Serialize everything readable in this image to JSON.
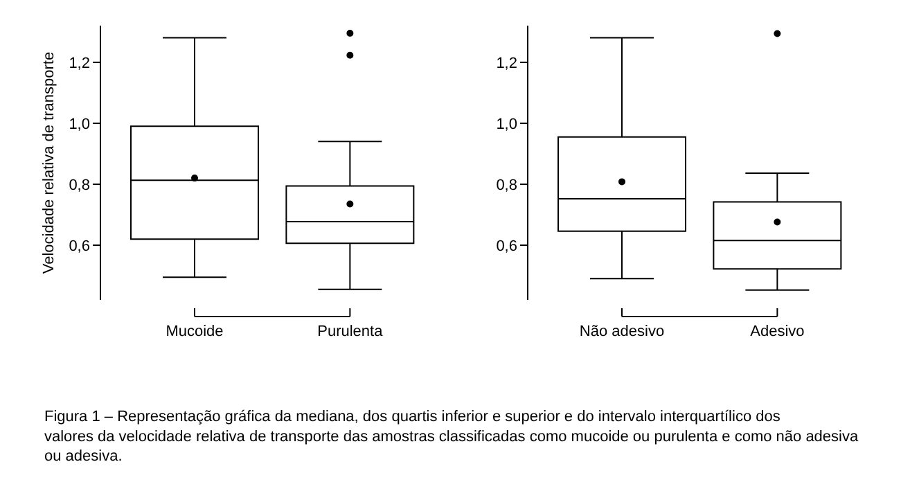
{
  "chart_data": [
    {
      "type": "box",
      "ylabel": "Velocidade relativa de transporte",
      "categories": [
        "Mucoide",
        "Purulenta"
      ],
      "boxes": [
        {
          "low": 0.495,
          "q1": 0.62,
          "median": 0.813,
          "q3": 0.99,
          "high": 1.28,
          "mean": 0.82
        },
        {
          "low": 0.455,
          "q1": 0.606,
          "median": 0.677,
          "q3": 0.794,
          "high": 0.94,
          "mean": 0.735,
          "outliers": [
            1.223,
            1.295
          ]
        }
      ],
      "color": "#000000",
      "ylim": [
        0.42,
        1.32
      ],
      "yticks": [
        {
          "value": 0.6,
          "label": "0,6"
        },
        {
          "value": 0.8,
          "label": "0,8"
        },
        {
          "value": 1.0,
          "label": "1,0"
        },
        {
          "value": 1.2,
          "label": "1,2"
        }
      ],
      "annotations": [
        "Figura 1 – Representação gráfica da mediana, dos quartis inferior e superior e do intervalo interquartílico dos valores da velocidade relativa de transporte das amostras classificadas como mucoide ou purulenta e como não adesiva ou adesiva."
      ]
    },
    {
      "type": "box",
      "categories": [
        "Não adesivo",
        "Adesivo"
      ],
      "boxes": [
        {
          "low": 0.49,
          "q1": 0.646,
          "median": 0.752,
          "q3": 0.955,
          "high": 1.28,
          "mean": 0.808
        },
        {
          "low": 0.453,
          "q1": 0.522,
          "median": 0.615,
          "q3": 0.742,
          "high": 0.836,
          "mean": 0.676,
          "outliers": [
            1.294
          ]
        }
      ],
      "color": "#000000",
      "ylim": [
        0.42,
        1.32
      ],
      "yticks": [
        {
          "value": 0.6,
          "label": "0,6"
        },
        {
          "value": 0.8,
          "label": "0,8"
        },
        {
          "value": 1.0,
          "label": "1,0"
        },
        {
          "value": 1.2,
          "label": "1,2"
        }
      ]
    }
  ]
}
